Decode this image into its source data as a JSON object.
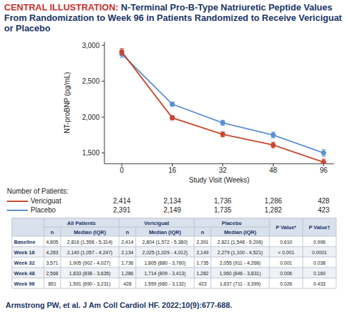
{
  "header": {
    "label": "CENTRAL ILLUSTRATION:",
    "title": "N-Terminal Pro-B-Type Natriuretic Peptide Values From Randomization to Week 96 in Patients Randomized to Receive Vericiguat or Placebo"
  },
  "chart_data": {
    "type": "line",
    "categories": [
      "0",
      "16",
      "32",
      "48",
      "96"
    ],
    "x_label": "Study Visit (Weeks)",
    "y_label": "NT-proBNP (pg/mL)",
    "ylim": [
      1350,
      3050
    ],
    "yticks": [
      {
        "value": 1500,
        "label": "1,500"
      },
      {
        "value": 2000,
        "label": "2,000"
      },
      {
        "value": 2500,
        "label": "2,500"
      },
      {
        "value": 3000,
        "label": "3,000"
      }
    ],
    "grid": false,
    "marker": "circle",
    "series": [
      {
        "name": "Vericiguat",
        "color": "#c9462c",
        "values": [
          2910,
          1990,
          1760,
          1610,
          1370
        ],
        "errors": [
          45,
          30,
          35,
          40,
          45
        ]
      },
      {
        "name": "Placebo",
        "color": "#5a8fd4",
        "values": [
          2880,
          2180,
          1920,
          1750,
          1500
        ],
        "errors": [
          45,
          30,
          35,
          40,
          45
        ]
      }
    ]
  },
  "patients": {
    "label": "Number of Patients:",
    "counts": [
      [
        "2,414",
        "2,134",
        "1,736",
        "1,286",
        "428"
      ],
      [
        "2,391",
        "2,149",
        "1,735",
        "1,282",
        "423"
      ]
    ]
  },
  "table": {
    "groups": [
      "All Patients",
      "Vericiguat",
      "Placebo"
    ],
    "subheaders": [
      "n",
      "Median (IQR)"
    ],
    "p_headers": [
      "P Value*",
      "P Value†"
    ],
    "rows": [
      [
        "Baseline",
        "4,805",
        "2,816 (1,556 - 5,314)",
        "2,414",
        "2,804 (1,572 - 5,380)",
        "2,391",
        "2,821 (1,548 - 5,206)",
        "0.610",
        "0.996"
      ],
      [
        "Week 16",
        "4,283",
        "2,140 (1,057 - 4,247)",
        "2,134",
        "2,025 (1,029 - 4,012)",
        "2,149",
        "2,279 (1,100 - 4,521)",
        "< 0.001",
        "0.0001"
      ],
      [
        "Week 32",
        "3,571",
        "1,905 (902 - 4,027)",
        "1,736",
        "1,805 (880 - 3,760)",
        "1,735",
        "2,055 (911 - 4,268)",
        "0.001",
        "0.038"
      ],
      [
        "Week 48",
        "2,568",
        "1,833 (838 - 3,635)",
        "1,286",
        "1,714 (809 - 3,413)",
        "1,282",
        "1,960 (846 - 3,831)",
        "0.006",
        "0.160"
      ],
      [
        "Week 96",
        "851",
        "1,591 (690 - 3,231)",
        "428",
        "1,559 (680 - 3,132)",
        "423",
        "1,637 (711 - 3,399)",
        "0.026",
        "0.433"
      ]
    ]
  },
  "citation": "Armstrong PW, et al. J Am Coll Cardiol HF. 2022;10(9):677-688."
}
